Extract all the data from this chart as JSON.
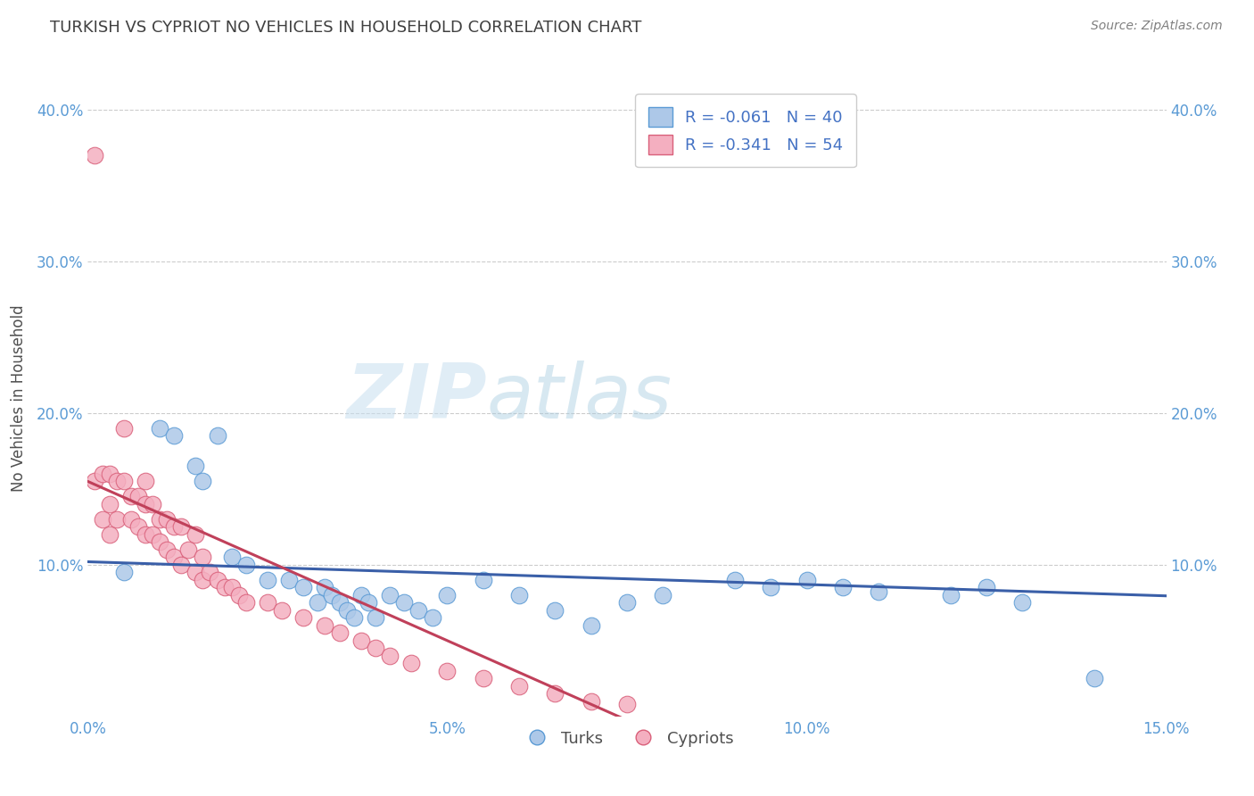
{
  "title": "TURKISH VS CYPRIOT NO VEHICLES IN HOUSEHOLD CORRELATION CHART",
  "source": "Source: ZipAtlas.com",
  "ylabel": "No Vehicles in Household",
  "xlim": [
    0.0,
    0.15
  ],
  "ylim": [
    0.0,
    0.42
  ],
  "xticks": [
    0.0,
    0.05,
    0.1,
    0.15
  ],
  "xtick_labels": [
    "0.0%",
    "5.0%",
    "10.0%",
    "15.0%"
  ],
  "yticks": [
    0.0,
    0.1,
    0.2,
    0.3,
    0.4
  ],
  "ytick_labels_left": [
    "",
    "10.0%",
    "20.0%",
    "30.0%",
    "40.0%"
  ],
  "ytick_labels_right": [
    "",
    "10.0%",
    "20.0%",
    "30.0%",
    "40.0%"
  ],
  "turks_R": -0.061,
  "turks_N": 40,
  "cypriots_R": -0.341,
  "cypriots_N": 54,
  "turks_color": "#adc8e8",
  "turks_edge": "#5b9bd5",
  "cypriots_color": "#f4afc0",
  "cypriots_edge": "#d9607a",
  "turks_line_color": "#3a5fa8",
  "cypriots_line_color": "#c0405a",
  "turks_x": [
    0.005,
    0.01,
    0.012,
    0.015,
    0.016,
    0.018,
    0.02,
    0.022,
    0.025,
    0.028,
    0.03,
    0.032,
    0.033,
    0.034,
    0.035,
    0.036,
    0.037,
    0.038,
    0.039,
    0.04,
    0.042,
    0.044,
    0.046,
    0.048,
    0.05,
    0.055,
    0.06,
    0.065,
    0.07,
    0.075,
    0.08,
    0.09,
    0.095,
    0.1,
    0.105,
    0.11,
    0.12,
    0.125,
    0.13,
    0.14
  ],
  "turks_y": [
    0.095,
    0.19,
    0.185,
    0.165,
    0.155,
    0.185,
    0.105,
    0.1,
    0.09,
    0.09,
    0.085,
    0.075,
    0.085,
    0.08,
    0.075,
    0.07,
    0.065,
    0.08,
    0.075,
    0.065,
    0.08,
    0.075,
    0.07,
    0.065,
    0.08,
    0.09,
    0.08,
    0.07,
    0.06,
    0.075,
    0.08,
    0.09,
    0.085,
    0.09,
    0.085,
    0.082,
    0.08,
    0.085,
    0.075,
    0.025
  ],
  "cypriots_x": [
    0.001,
    0.001,
    0.002,
    0.002,
    0.003,
    0.003,
    0.003,
    0.004,
    0.004,
    0.005,
    0.005,
    0.006,
    0.006,
    0.007,
    0.007,
    0.008,
    0.008,
    0.008,
    0.009,
    0.009,
    0.01,
    0.01,
    0.011,
    0.011,
    0.012,
    0.012,
    0.013,
    0.013,
    0.014,
    0.015,
    0.015,
    0.016,
    0.016,
    0.017,
    0.018,
    0.019,
    0.02,
    0.021,
    0.022,
    0.025,
    0.027,
    0.03,
    0.033,
    0.035,
    0.038,
    0.04,
    0.042,
    0.045,
    0.05,
    0.055,
    0.06,
    0.065,
    0.07,
    0.075
  ],
  "cypriots_y": [
    0.37,
    0.155,
    0.16,
    0.13,
    0.16,
    0.14,
    0.12,
    0.155,
    0.13,
    0.19,
    0.155,
    0.145,
    0.13,
    0.145,
    0.125,
    0.155,
    0.14,
    0.12,
    0.14,
    0.12,
    0.13,
    0.115,
    0.13,
    0.11,
    0.125,
    0.105,
    0.125,
    0.1,
    0.11,
    0.12,
    0.095,
    0.105,
    0.09,
    0.095,
    0.09,
    0.085,
    0.085,
    0.08,
    0.075,
    0.075,
    0.07,
    0.065,
    0.06,
    0.055,
    0.05,
    0.045,
    0.04,
    0.035,
    0.03,
    0.025,
    0.02,
    0.015,
    0.01,
    0.008
  ],
  "background_color": "#ffffff",
  "grid_color": "#cccccc",
  "watermark_zip": "ZIP",
  "watermark_atlas": "atlas",
  "legend_label_turks": "Turks",
  "legend_label_cypriots": "Cypriots",
  "title_color": "#404040",
  "axis_label_color": "#505050",
  "tick_color": "#5b9bd5",
  "source_color": "#808080"
}
